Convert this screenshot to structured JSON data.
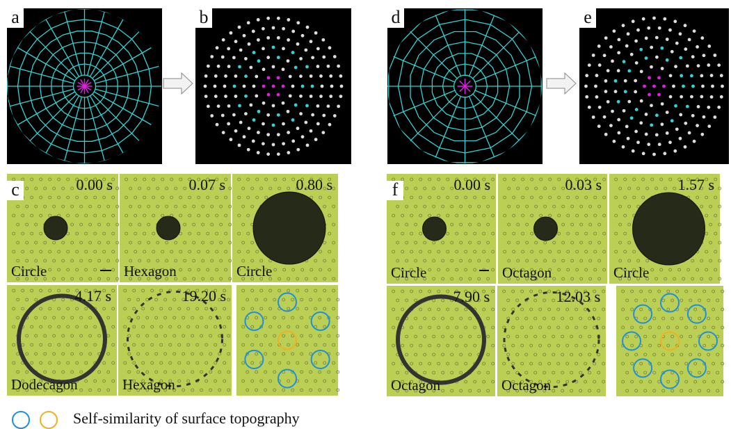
{
  "top_panels": [
    {
      "label": "a"
    },
    {
      "label": "b"
    },
    {
      "label": "d"
    },
    {
      "label": "e"
    }
  ],
  "left_sequence": {
    "label": "c",
    "frames": [
      {
        "time": "0.00 s",
        "caption": "Circle"
      },
      {
        "time": "0.07 s",
        "caption": "Hexagon"
      },
      {
        "time": "0.80 s",
        "caption": "Circle"
      },
      {
        "time": "4.17 s",
        "caption": "Dodecagon"
      },
      {
        "time": "19.20 s",
        "caption": "Hexagon"
      }
    ]
  },
  "right_sequence": {
    "label": "f",
    "frames": [
      {
        "time": "0.00 s",
        "caption": "Circle"
      },
      {
        "time": "0.03 s",
        "caption": "Octagon"
      },
      {
        "time": "1.57 s",
        "caption": "Circle"
      },
      {
        "time": "7.90 s",
        "caption": "Octagon"
      },
      {
        "time": "12.03 s",
        "caption": "Octagon"
      }
    ]
  },
  "legend": "Self-similarity of surface topography"
}
